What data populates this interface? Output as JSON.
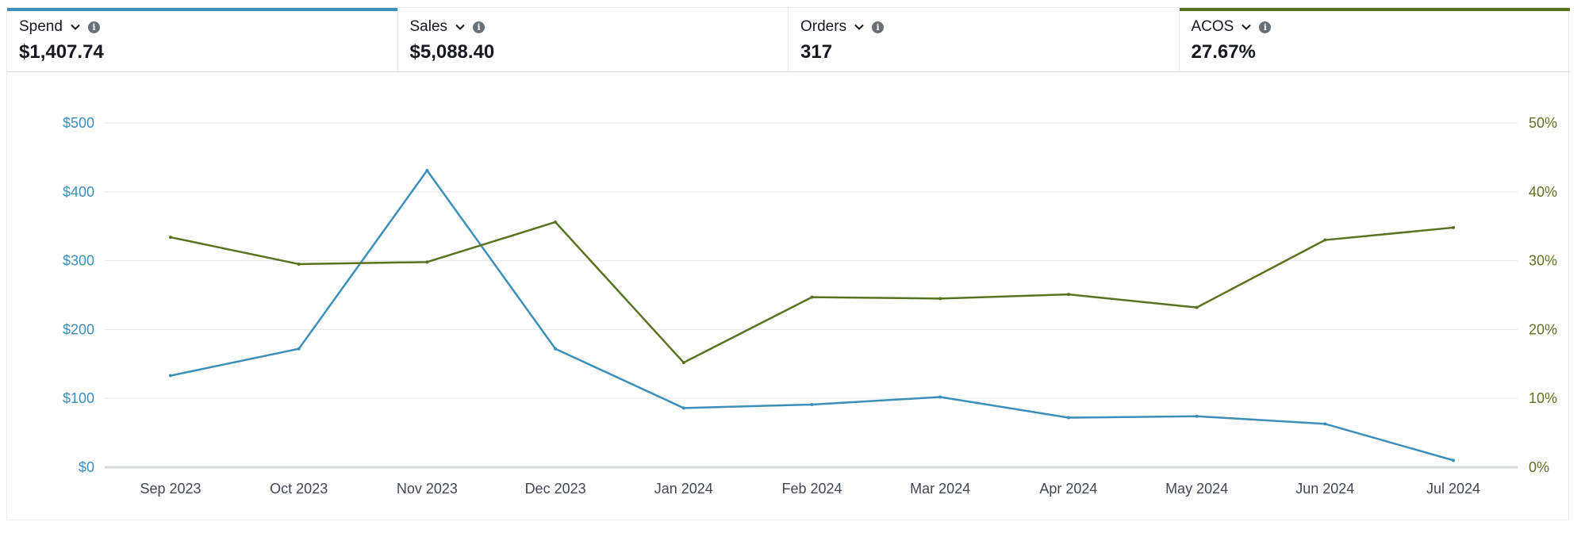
{
  "metrics": [
    {
      "label": "Spend",
      "value": "$1,407.74",
      "selected": true,
      "color": "#3b8fb9"
    },
    {
      "label": "Sales",
      "value": "$5,088.40",
      "selected": false,
      "color": ""
    },
    {
      "label": "Orders",
      "value": "317",
      "selected": false,
      "color": ""
    },
    {
      "label": "ACOS",
      "value": "27.67%",
      "selected": true,
      "color": "#5a7320"
    }
  ],
  "chart_data": {
    "type": "line",
    "categories": [
      "Sep 2023",
      "Oct 2023",
      "Nov 2023",
      "Dec 2023",
      "Jan 2024",
      "Feb 2024",
      "Mar 2024",
      "Apr 2024",
      "May 2024",
      "Jun 2024",
      "Jul 2024"
    ],
    "series": [
      {
        "name": "Spend",
        "axis": "left",
        "color": "#3b8fb9",
        "values": [
          133,
          172,
          431,
          172,
          86,
          91,
          102,
          72,
          74,
          63,
          10
        ]
      },
      {
        "name": "ACOS",
        "axis": "right",
        "color": "#5a7320",
        "values": [
          33.4,
          29.5,
          29.8,
          35.6,
          15.2,
          24.7,
          24.5,
          25.1,
          23.2,
          33.0,
          34.8
        ]
      }
    ],
    "yleft": {
      "ticks": [
        "$0",
        "$100",
        "$200",
        "$300",
        "$400",
        "$500"
      ],
      "range": [
        0,
        500
      ]
    },
    "yright": {
      "ticks": [
        "0%",
        "10%",
        "20%",
        "30%",
        "40%",
        "50%"
      ],
      "range": [
        0,
        50
      ]
    },
    "grid": true
  }
}
